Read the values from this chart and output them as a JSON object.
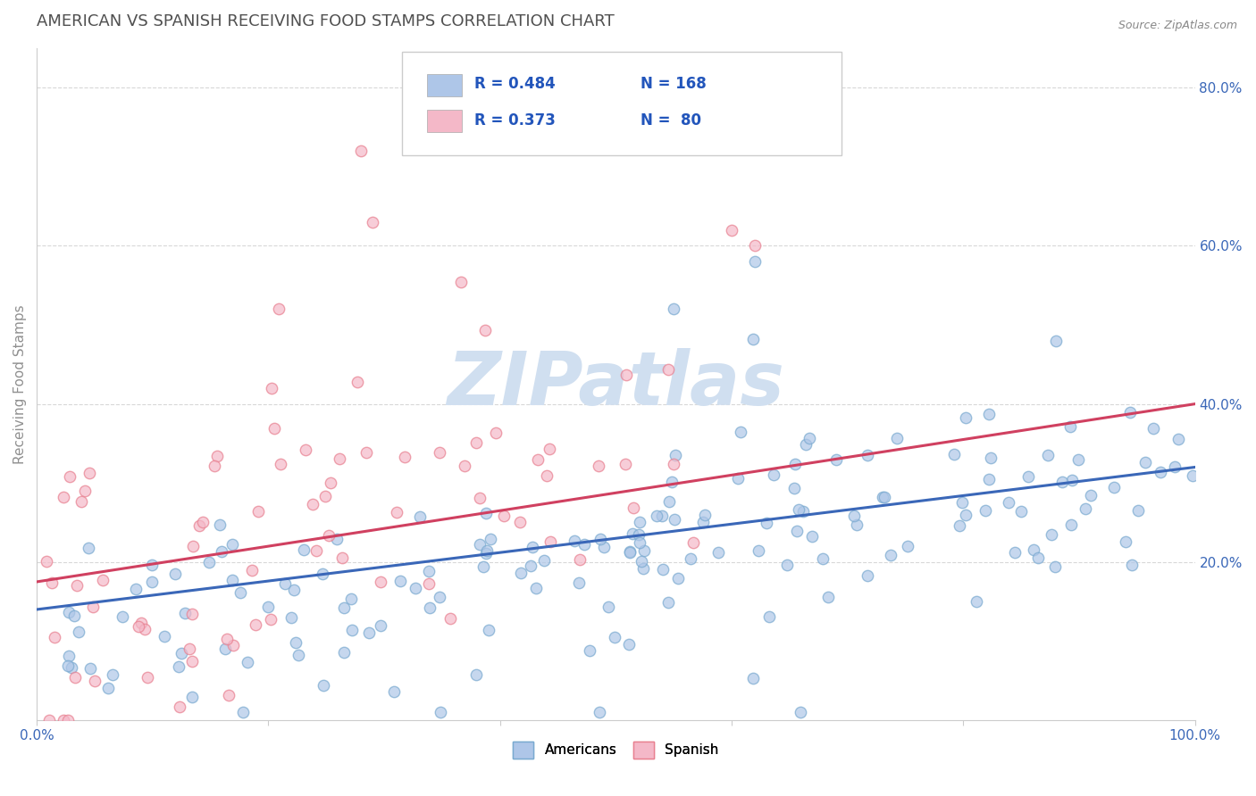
{
  "title": "AMERICAN VS SPANISH RECEIVING FOOD STAMPS CORRELATION CHART",
  "source_text": "Source: ZipAtlas.com",
  "ylabel": "Receiving Food Stamps",
  "xlim": [
    0,
    1.0
  ],
  "ylim": [
    0,
    0.85
  ],
  "xticks": [
    0.0,
    0.2,
    0.4,
    0.6,
    0.8,
    1.0
  ],
  "xtick_labels": [
    "0.0%",
    "",
    "",
    "",
    "",
    "100.0%"
  ],
  "yticks": [
    0.2,
    0.4,
    0.6,
    0.8
  ],
  "ytick_labels": [
    "20.0%",
    "40.0%",
    "60.0%",
    "80.0%"
  ],
  "american_color": "#aec6e8",
  "spanish_color": "#f4b8c8",
  "american_edge": "#7aaad0",
  "spanish_edge": "#e88090",
  "line_american_color": "#3a67b8",
  "line_spanish_color": "#d04060",
  "legend_R_american": "0.484",
  "legend_N_american": "168",
  "legend_R_spanish": "0.373",
  "legend_N_spanish": "80",
  "legend_text_color": "#2255bb",
  "watermark": "ZIPatlas",
  "watermark_color": "#d0dff0",
  "title_color": "#505050",
  "title_fontsize": 13,
  "axis_label_color": "#909090",
  "tick_color": "#3a67b8",
  "grid_color": "#d8d8d8",
  "background_color": "#ffffff",
  "R_american": 0.484,
  "R_spanish": 0.373,
  "N_american": 168,
  "N_spanish": 80,
  "figwidth": 14.06,
  "figheight": 8.92
}
